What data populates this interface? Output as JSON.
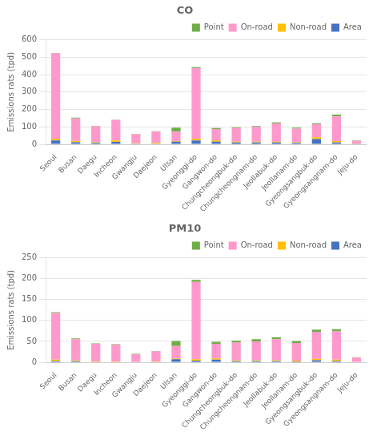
{
  "chart_data": [
    {
      "type": "bar",
      "title": "CO",
      "stacked": true,
      "grid": true,
      "legend": "upper right",
      "ylabel": "Emissions rats (tpd)",
      "categories": [
        "Seoul",
        "Busan",
        "Daegu",
        "Incheon",
        "Gwangju",
        "Daejeon",
        "Ulsan",
        "Gyeonggi-do",
        "Gangwon-do",
        "Chungcheongbuk-do",
        "Chungcheongnam-do",
        "Jeollabuk-do",
        "Jeollanam-do",
        "Gyeongsangbuk-do",
        "Gyeongsangnam-do",
        "Jeju-do"
      ],
      "series": [
        {
          "name": "Area",
          "color": "#4472C4",
          "values": [
            22,
            12,
            8,
            14,
            4,
            4,
            15,
            22,
            15,
            10,
            10,
            10,
            8,
            30,
            10,
            3
          ]
        },
        {
          "name": "Non-road",
          "color": "#FFC000",
          "values": [
            10,
            8,
            5,
            8,
            2,
            4,
            3,
            10,
            8,
            5,
            5,
            5,
            4,
            10,
            8,
            2
          ]
        },
        {
          "name": "On-road",
          "color": "#FF99CC",
          "values": [
            490,
            128,
            90,
            118,
            52,
            65,
            55,
            405,
            65,
            78,
            85,
            105,
            78,
            75,
            142,
            15
          ]
        },
        {
          "name": "Point",
          "color": "#70AD47",
          "values": [
            3,
            5,
            3,
            2,
            2,
            2,
            22,
            5,
            5,
            5,
            5,
            5,
            5,
            5,
            10,
            2
          ]
        }
      ],
      "ylim": [
        0,
        600
      ],
      "yticks": [
        0,
        100,
        200,
        300,
        400,
        500,
        600
      ]
    },
    {
      "type": "bar",
      "title": "PM10",
      "stacked": true,
      "grid": true,
      "legend": "upper right",
      "ylabel": "Emissions rats (tpd)",
      "categories": [
        "Seoul",
        "Busan",
        "Daegu",
        "Incheon",
        "Gwangju",
        "Daejeon",
        "Ulsan",
        "Gyeonggi-do",
        "Gangwon-do",
        "Chungcheongbuk-do",
        "Chungcheongnam-do",
        "Jeollabuk-do",
        "Jeollanam-do",
        "Gyeongsangbuk-do",
        "Gyeongsangnam-do",
        "Jeju-do"
      ],
      "series": [
        {
          "name": "Area",
          "color": "#4472C4",
          "values": [
            3,
            3,
            1,
            1,
            0,
            1,
            7,
            4,
            6,
            3,
            3,
            3,
            2,
            5,
            3,
            0
          ]
        },
        {
          "name": "Non-road",
          "color": "#FFC000",
          "values": [
            3,
            2,
            1,
            1,
            1,
            1,
            2,
            3,
            3,
            2,
            2,
            2,
            2,
            3,
            3,
            0
          ]
        },
        {
          "name": "On-road",
          "color": "#FF99CC",
          "values": [
            112,
            50,
            42,
            40,
            18,
            24,
            30,
            185,
            35,
            42,
            45,
            50,
            42,
            65,
            68,
            11
          ]
        },
        {
          "name": "Point",
          "color": "#70AD47",
          "values": [
            2,
            2,
            1,
            1,
            1,
            1,
            12,
            5,
            5,
            5,
            5,
            5,
            5,
            5,
            5,
            1
          ]
        }
      ],
      "ylim": [
        0,
        250
      ],
      "yticks": [
        0,
        50,
        100,
        150,
        200,
        250
      ]
    }
  ]
}
